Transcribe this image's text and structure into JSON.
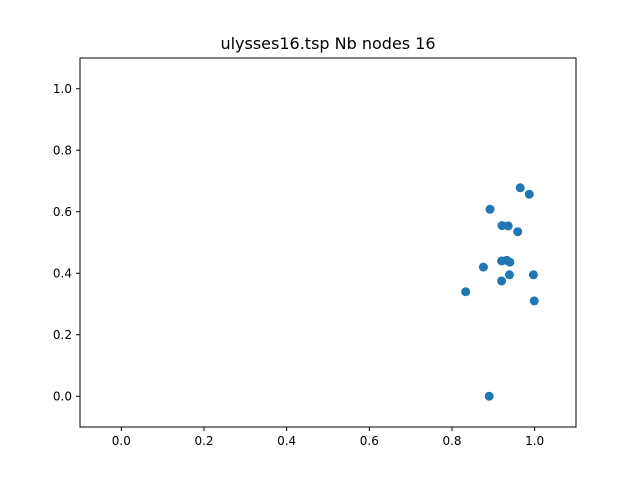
{
  "chart_data": {
    "type": "scatter",
    "title": "ulysses16.tsp Nb nodes 16",
    "xlabel": "",
    "ylabel": "",
    "xlim": [
      -0.1,
      1.1
    ],
    "ylim": [
      -0.1,
      1.1
    ],
    "x_ticks": [
      0.0,
      0.2,
      0.4,
      0.6,
      0.8,
      1.0
    ],
    "y_ticks": [
      0.0,
      0.2,
      0.4,
      0.6,
      0.8,
      1.0
    ],
    "x_tick_labels": [
      "0.0",
      "0.2",
      "0.4",
      "0.6",
      "0.8",
      "1.0"
    ],
    "y_tick_labels": [
      "0.0",
      "0.2",
      "0.4",
      "0.6",
      "0.8",
      "1.0"
    ],
    "grid": false,
    "legend": "none",
    "marker_color": "#1f77b4",
    "points": [
      {
        "x": 0.833,
        "y": 0.34
      },
      {
        "x": 0.876,
        "y": 0.42
      },
      {
        "x": 0.89,
        "y": 0.0
      },
      {
        "x": 0.892,
        "y": 0.608
      },
      {
        "x": 0.92,
        "y": 0.375
      },
      {
        "x": 0.92,
        "y": 0.44
      },
      {
        "x": 0.921,
        "y": 0.555
      },
      {
        "x": 0.932,
        "y": 0.442
      },
      {
        "x": 0.936,
        "y": 0.554
      },
      {
        "x": 0.939,
        "y": 0.395
      },
      {
        "x": 0.94,
        "y": 0.436
      },
      {
        "x": 0.959,
        "y": 0.535
      },
      {
        "x": 0.965,
        "y": 0.678
      },
      {
        "x": 0.987,
        "y": 0.657
      },
      {
        "x": 0.997,
        "y": 0.395
      },
      {
        "x": 0.999,
        "y": 0.31
      }
    ]
  }
}
